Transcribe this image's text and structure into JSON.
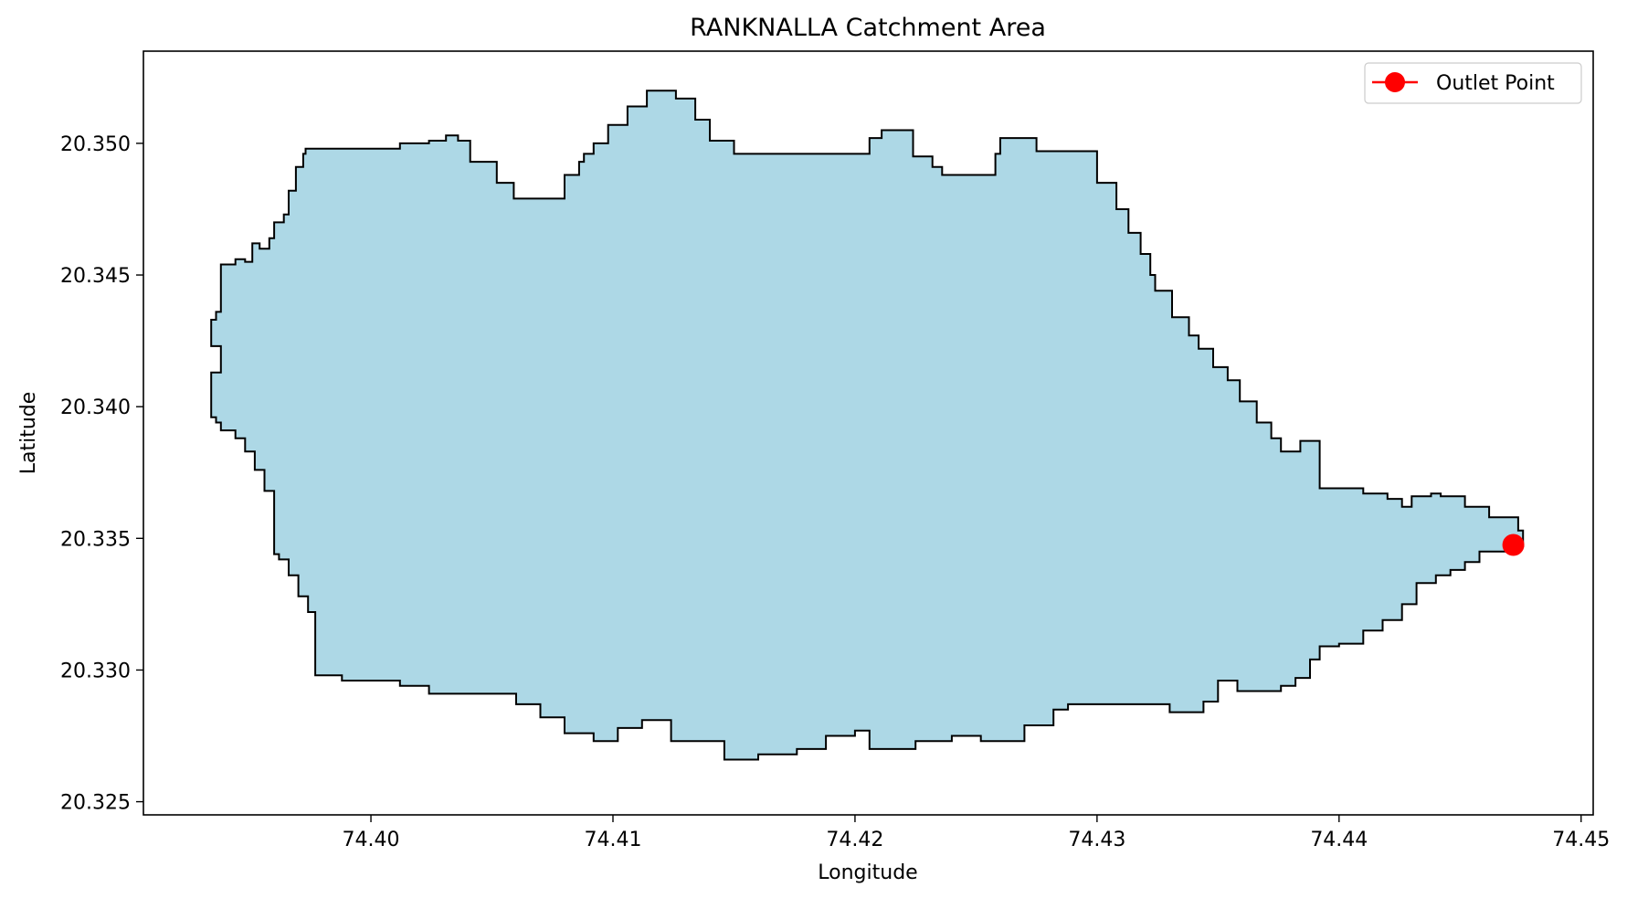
{
  "chart_data": {
    "type": "area",
    "title": "RANKNALLA Catchment Area",
    "xlabel": "Longitude",
    "ylabel": "Latitude",
    "xlim": [
      74.3906,
      74.4505
    ],
    "ylim": [
      20.3245,
      20.3535
    ],
    "xticks": [
      74.4,
      74.41,
      74.42,
      74.43,
      74.44,
      74.45
    ],
    "xtick_labels": [
      "74.40",
      "74.41",
      "74.42",
      "74.43",
      "74.44",
      "74.45"
    ],
    "yticks": [
      20.325,
      20.33,
      20.335,
      20.34,
      20.345,
      20.35
    ],
    "ytick_labels": [
      "20.325",
      "20.330",
      "20.335",
      "20.340",
      "20.345",
      "20.350"
    ],
    "grid": false,
    "legend": {
      "position": "top-right",
      "entries": [
        "Outlet Point"
      ]
    },
    "fill_color": "#add8e6",
    "edge_color": "#000000",
    "outlet_color": "#ff0000",
    "outlet_point": {
      "lon": 74.4472,
      "lat": 20.33475
    },
    "boundary": [
      [
        74.3934,
        20.3433
      ],
      [
        74.3936,
        20.3436
      ],
      [
        74.3938,
        20.3438
      ],
      [
        74.3938,
        20.3454
      ],
      [
        74.3944,
        20.3456
      ],
      [
        74.3948,
        20.3455
      ],
      [
        74.3951,
        20.3462
      ],
      [
        74.3954,
        20.346
      ],
      [
        74.3958,
        20.3464
      ],
      [
        74.396,
        20.347
      ],
      [
        74.3964,
        20.3473
      ],
      [
        74.3966,
        20.3482
      ],
      [
        74.3969,
        20.3491
      ],
      [
        74.3972,
        20.3496
      ],
      [
        74.3973,
        20.3498
      ],
      [
        74.4,
        20.3498
      ],
      [
        74.4012,
        20.35
      ],
      [
        74.4024,
        20.3501
      ],
      [
        74.4031,
        20.3503
      ],
      [
        74.4036,
        20.3501
      ],
      [
        74.4041,
        20.3493
      ],
      [
        74.4052,
        20.3485
      ],
      [
        74.4059,
        20.3479
      ],
      [
        74.4076,
        20.3479
      ],
      [
        74.408,
        20.3488
      ],
      [
        74.4086,
        20.3493
      ],
      [
        74.4088,
        20.3496
      ],
      [
        74.4092,
        20.35
      ],
      [
        74.4098,
        20.3507
      ],
      [
        74.4106,
        20.3514
      ],
      [
        74.4114,
        20.352
      ],
      [
        74.412,
        20.352
      ],
      [
        74.4126,
        20.3517
      ],
      [
        74.4134,
        20.3509
      ],
      [
        74.414,
        20.3501
      ],
      [
        74.415,
        20.3496
      ],
      [
        74.4188,
        20.3496
      ],
      [
        74.4206,
        20.3502
      ],
      [
        74.4211,
        20.3505
      ],
      [
        74.4216,
        20.3505
      ],
      [
        74.4224,
        20.3495
      ],
      [
        74.4232,
        20.3491
      ],
      [
        74.4236,
        20.3488
      ],
      [
        74.4252,
        20.3488
      ],
      [
        74.4258,
        20.3496
      ],
      [
        74.426,
        20.3502
      ],
      [
        74.4268,
        20.3502
      ],
      [
        74.4275,
        20.3497
      ],
      [
        74.4293,
        20.3497
      ],
      [
        74.43,
        20.3485
      ],
      [
        74.4308,
        20.3475
      ],
      [
        74.4313,
        20.3466
      ],
      [
        74.4318,
        20.3458
      ],
      [
        74.4322,
        20.345
      ],
      [
        74.4324,
        20.3444
      ],
      [
        74.4331,
        20.3434
      ],
      [
        74.4338,
        20.3427
      ],
      [
        74.4342,
        20.3422
      ],
      [
        74.4348,
        20.3415
      ],
      [
        74.4354,
        20.341
      ],
      [
        74.4359,
        20.3402
      ],
      [
        74.4366,
        20.3394
      ],
      [
        74.4372,
        20.3388
      ],
      [
        74.4376,
        20.3383
      ],
      [
        74.4384,
        20.3387
      ],
      [
        74.4392,
        20.3387
      ],
      [
        74.4392,
        20.3369
      ],
      [
        74.441,
        20.3367
      ],
      [
        74.442,
        20.3365
      ],
      [
        74.4426,
        20.3362
      ],
      [
        74.443,
        20.3366
      ],
      [
        74.4438,
        20.3367
      ],
      [
        74.4442,
        20.3366
      ],
      [
        74.4446,
        20.3366
      ],
      [
        74.4452,
        20.3362
      ],
      [
        74.446,
        20.3362
      ],
      [
        74.4462,
        20.3358
      ],
      [
        74.4466,
        20.3358
      ],
      [
        74.4474,
        20.3353
      ],
      [
        74.4476,
        20.3347
      ],
      [
        74.4474,
        20.3345
      ],
      [
        74.4466,
        20.3345
      ],
      [
        74.4458,
        20.3341
      ],
      [
        74.4452,
        20.3338
      ],
      [
        74.4446,
        20.3336
      ],
      [
        74.444,
        20.3333
      ],
      [
        74.4432,
        20.3325
      ],
      [
        74.4426,
        20.3319
      ],
      [
        74.4418,
        20.3315
      ],
      [
        74.441,
        20.331
      ],
      [
        74.44,
        20.3309
      ],
      [
        74.4392,
        20.3304
      ],
      [
        74.4388,
        20.3297
      ],
      [
        74.4382,
        20.3294
      ],
      [
        74.4376,
        20.3292
      ],
      [
        74.4358,
        20.3296
      ],
      [
        74.435,
        20.3288
      ],
      [
        74.4344,
        20.3284
      ],
      [
        74.433,
        20.3287
      ],
      [
        74.43,
        20.3287
      ],
      [
        74.4288,
        20.3285
      ],
      [
        74.4282,
        20.3279
      ],
      [
        74.427,
        20.3273
      ],
      [
        74.4252,
        20.3275
      ],
      [
        74.424,
        20.3273
      ],
      [
        74.4225,
        20.327
      ],
      [
        74.4212,
        20.327
      ],
      [
        74.4206,
        20.3277
      ],
      [
        74.42,
        20.3275
      ],
      [
        74.4188,
        20.327
      ],
      [
        74.4176,
        20.3268
      ],
      [
        74.416,
        20.3266
      ],
      [
        74.4146,
        20.3273
      ],
      [
        74.4132,
        20.3273
      ],
      [
        74.4124,
        20.3281
      ],
      [
        74.4112,
        20.3278
      ],
      [
        74.4102,
        20.3273
      ],
      [
        74.4092,
        20.3276
      ],
      [
        74.408,
        20.3282
      ],
      [
        74.407,
        20.3287
      ],
      [
        74.406,
        20.3291
      ],
      [
        74.404,
        20.3291
      ],
      [
        74.4024,
        20.3294
      ],
      [
        74.4012,
        20.3296
      ],
      [
        74.4002,
        20.3296
      ],
      [
        74.3988,
        20.3298
      ],
      [
        74.398,
        20.3298
      ],
      [
        74.3977,
        20.3322
      ],
      [
        74.3974,
        20.3328
      ],
      [
        74.397,
        20.3336
      ],
      [
        74.3966,
        20.3342
      ],
      [
        74.3962,
        20.3344
      ],
      [
        74.396,
        20.3368
      ],
      [
        74.3956,
        20.3376
      ],
      [
        74.3952,
        20.3383
      ],
      [
        74.3948,
        20.3388
      ],
      [
        74.3944,
        20.3391
      ],
      [
        74.3938,
        20.3394
      ],
      [
        74.3936,
        20.3396
      ],
      [
        74.3934,
        20.3404
      ],
      [
        74.3934,
        20.3413
      ],
      [
        74.3938,
        20.3413
      ],
      [
        74.3938,
        20.3423
      ],
      [
        74.3934,
        20.3428
      ]
    ]
  }
}
